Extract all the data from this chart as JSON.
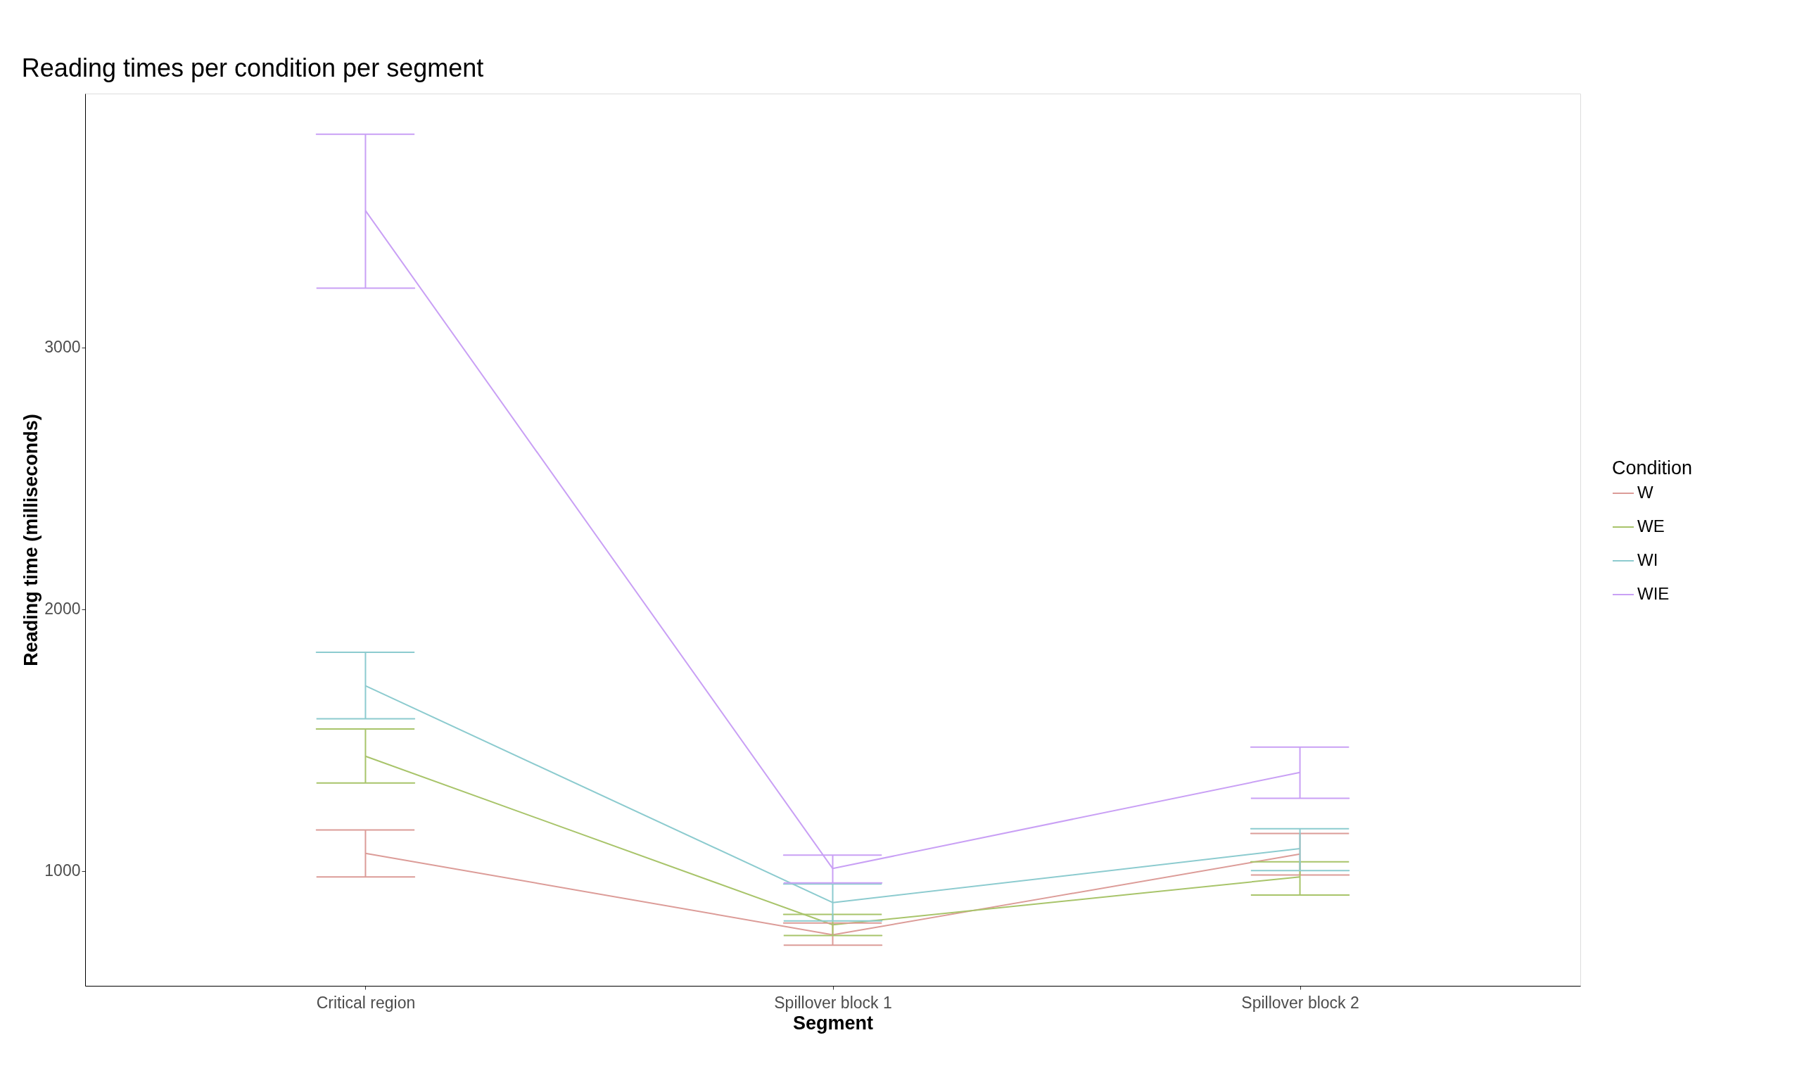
{
  "chart_data": {
    "type": "line",
    "title": "Reading times per condition per segment",
    "xlabel": "Segment",
    "ylabel": "Reading time (milliseconds)",
    "legend_title": "Condition",
    "categories": [
      "Critical region",
      "Spillover block 1",
      "Spillover block 2"
    ],
    "series": [
      {
        "name": "W",
        "color": "#dc9c98",
        "values": [
          1067,
          756,
          1064
        ],
        "errors": [
          [
            977,
            1156
          ],
          [
            716,
            801
          ],
          [
            984,
            1143
          ]
        ]
      },
      {
        "name": "WE",
        "color": "#a8c46a",
        "values": [
          1438,
          794,
          977
        ],
        "errors": [
          [
            1336,
            1542
          ],
          [
            753,
            834
          ],
          [
            908,
            1035
          ]
        ]
      },
      {
        "name": "WI",
        "color": "#8ccbcf",
        "values": [
          1707,
          879,
          1085
        ],
        "errors": [
          [
            1581,
            1835
          ],
          [
            809,
            950
          ],
          [
            1001,
            1161
          ]
        ]
      },
      {
        "name": "WIE",
        "color": "#c9a0f5",
        "values": [
          3522,
          1009,
          1376
        ],
        "errors": [
          [
            3226,
            3814
          ],
          [
            954,
            1060
          ],
          [
            1277,
            1473
          ]
        ]
      }
    ],
    "ylim": [
      561,
      3969
    ],
    "yticks": [
      1000,
      2000,
      3000
    ],
    "grid": false,
    "legend": "right",
    "marker": "none",
    "line_style": "solid"
  }
}
